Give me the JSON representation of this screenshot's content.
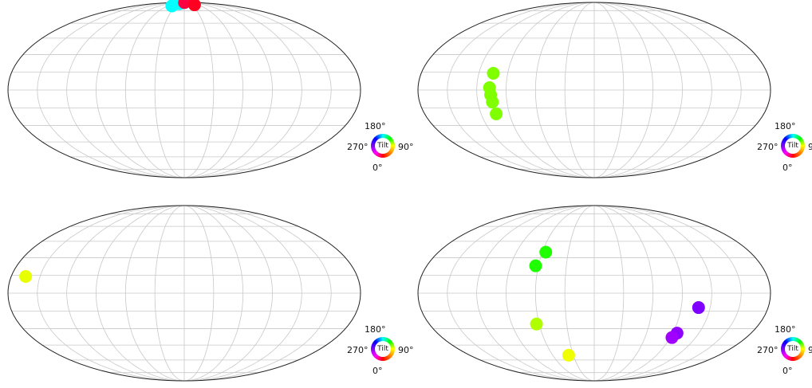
{
  "legend": {
    "label_top": "180°",
    "label_left": "270°",
    "label_right": "90°",
    "label_bottom": "0°",
    "center_label": "Tilt"
  },
  "chart_data": [
    {
      "type": "scatter",
      "projection": "mollweide",
      "grid": true,
      "legend": "bottom-right",
      "points": [
        {
          "lon": -45,
          "lat": 82,
          "color": "#00ffff"
        },
        {
          "lon": -30,
          "lat": 86,
          "color": "#00ffff"
        },
        {
          "lon": -20,
          "lat": 88,
          "color": "#00ffff"
        },
        {
          "lon": -12,
          "lat": 89,
          "color": "#00ffff"
        },
        {
          "lon": 3,
          "lat": 89,
          "color": "#ff0040"
        },
        {
          "lon": 45,
          "lat": 84,
          "color": "#ff0020"
        }
      ]
    },
    {
      "type": "scatter",
      "projection": "mollweide",
      "grid": true,
      "legend": "bottom-right",
      "points": [
        {
          "lon": -105,
          "lat": 14,
          "color": "#80ff00"
        },
        {
          "lon": -107,
          "lat": 2,
          "color": "#80ff00"
        },
        {
          "lon": -106,
          "lat": -4,
          "color": "#80ff00"
        },
        {
          "lon": -105,
          "lat": -10,
          "color": "#80ff00"
        },
        {
          "lon": -104,
          "lat": -20,
          "color": "#80ff00"
        }
      ]
    },
    {
      "type": "scatter",
      "projection": "mollweide",
      "grid": true,
      "legend": "bottom-right",
      "points": [
        {
          "lon": -165,
          "lat": 14,
          "color": "#e8ff00"
        }
      ]
    },
    {
      "type": "scatter",
      "projection": "mollweide",
      "grid": true,
      "legend": "bottom-right",
      "points": [
        {
          "lon": -56,
          "lat": 35,
          "color": "#20ff00"
        },
        {
          "lon": -63,
          "lat": 23,
          "color": "#20ff00"
        },
        {
          "lon": -63,
          "lat": -26,
          "color": "#b0ff00"
        },
        {
          "lon": -37,
          "lat": -55,
          "color": "#f0ff00"
        },
        {
          "lon": 108,
          "lat": -12,
          "color": "#8000ff"
        },
        {
          "lon": 95,
          "lat": -34,
          "color": "#9000ff"
        },
        {
          "lon": 92,
          "lat": -38,
          "color": "#a000ff"
        }
      ]
    }
  ]
}
